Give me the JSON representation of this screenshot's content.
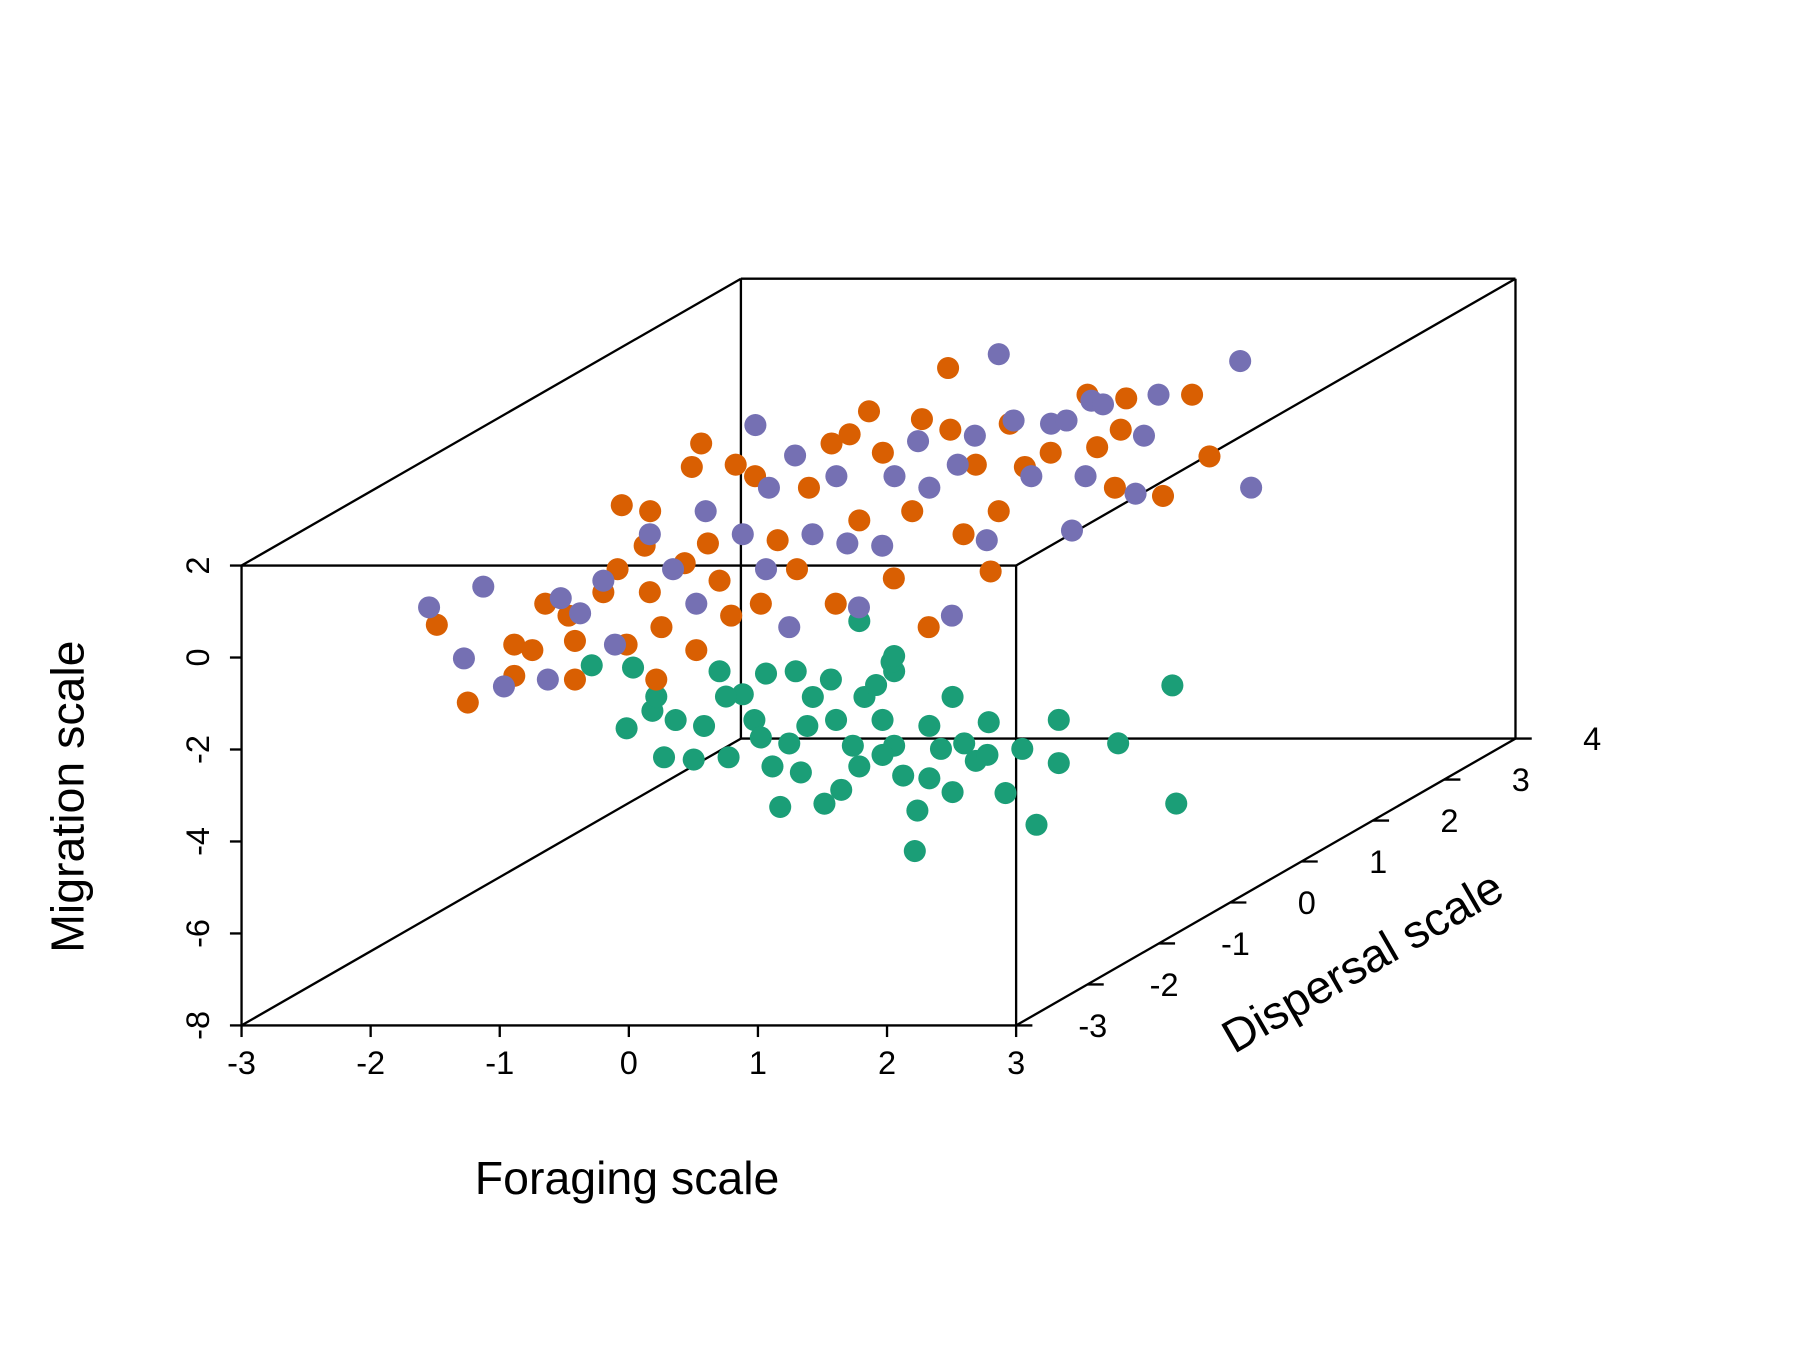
{
  "chart_data": {
    "type": "scatter3d",
    "xlabel": "Foraging scale",
    "ylabel": "Dispersal scale",
    "zlabel": "Migration scale",
    "xlim": [
      -3,
      3
    ],
    "ylim": [
      -3,
      4
    ],
    "zlim": [
      -8,
      2
    ],
    "xticks": [
      -3,
      -2,
      -1,
      0,
      1,
      2,
      3
    ],
    "yticks": [
      -3,
      -2,
      -1,
      0,
      1,
      2,
      3,
      4
    ],
    "zticks": [
      -8,
      -6,
      -4,
      -2,
      0,
      2
    ],
    "series": [
      {
        "color": "#1b9e77",
        "x": [
          2.0,
          2.03,
          1.58,
          1.12,
          1.12,
          1.5,
          1.26,
          1.13,
          1.03,
          0.94,
          0.85,
          1.11,
          1.13,
          0.67,
          1.02,
          0.95,
          0.86,
          0.95,
          0.72,
          0.68,
          0.54,
          0.41,
          0.78,
          0.69,
          0.62,
          0.56,
          0.42,
          0.33,
          0.22,
          0.15,
          0.03,
          -0.05,
          -0.19,
          -0.28,
          -0.37,
          -0.57,
          -0.34,
          -0.52,
          -0.84,
          0.32,
          0.5,
          0.63,
          0.86,
          0.67,
          0.85,
          0.51,
          0.93,
          0.74,
          0.76,
          1.12,
          1.39,
          0.46,
          0.81,
          0.83,
          0.47,
          0.2,
          0.68,
          0.95
        ],
        "y": [
          1,
          1,
          1,
          1,
          1,
          0,
          0,
          0,
          0,
          0,
          0,
          -1,
          -1,
          0,
          -1,
          -1,
          -1,
          -1,
          -1,
          -1,
          -1,
          -1,
          -2,
          -2,
          -2,
          -2,
          -2,
          -2,
          -2,
          -2,
          -2,
          -2,
          -2,
          -2,
          -2,
          -2,
          -2,
          -2,
          -2,
          -1,
          -1,
          -1,
          -1,
          0,
          0,
          -2,
          -1,
          -2,
          0,
          0,
          0,
          -1,
          -1,
          -2,
          -2,
          -2,
          -1,
          -1
        ],
        "z": [
          -4.17,
          -6.74,
          -5.43,
          -4.92,
          -5.86,
          -6.31,
          -5.62,
          -4.08,
          -4.92,
          -4.54,
          -5.6,
          -5.99,
          -5.11,
          -5.3,
          -4.35,
          -3.7,
          -3.14,
          -2.08,
          -2.64,
          -4.15,
          -4.66,
          -4.96,
          -3.39,
          -2.76,
          -4.14,
          -3.26,
          -2.25,
          -1.69,
          -3.06,
          -1.19,
          -2.38,
          -3.11,
          -2.25,
          -3.06,
          -2.05,
          -2.43,
          -1.74,
          -1.11,
          -1.06,
          -2.64,
          -3.14,
          -3.7,
          -3.9,
          -4.16,
          -3.53,
          -1.24,
          -1.88,
          -1.19,
          -4.66,
          -4.79,
          -4.66,
          -2.26,
          -2.38,
          -2.38,
          -2.63,
          -1.74,
          -0.99,
          -1.75
        ]
      },
      {
        "color": "#d95f02",
        "x": [
          -1.8,
          -2.04,
          -1.44,
          -1.44,
          -1.3,
          -1.2,
          -0.97,
          -0.97,
          -1.02,
          -0.75,
          -0.64,
          -0.57,
          -0.34,
          -0.3,
          -0.39,
          -0.43,
          -1.16,
          -0.94,
          -0.12,
          -1.17,
          -1.65,
          0.06,
          0.24,
          -0.83,
          -0.68,
          0.47,
          0.6,
          0.75,
          0.29,
          -0.64,
          -0.5,
          -0.35,
          0.68,
          0.31,
          1.5,
          1.09,
          0.06,
          1.77,
          0.28,
          -0.29,
          2.04,
          2.25,
          1.76,
          1.41,
          1.61,
          0.79,
          1.97,
          1.6,
          1.09,
          2.48,
          1.6,
          2.84,
          2.66,
          0.74,
          1.03,
          1.05,
          -0.03,
          0.15
        ],
        "y": [
          -2,
          -2,
          -2,
          -2,
          -2,
          -2,
          -2,
          -2,
          -2,
          -2,
          -2,
          -2,
          -2,
          -2,
          -2,
          -2,
          -1,
          -1,
          -2,
          0,
          1,
          -2,
          -2,
          0,
          0,
          -2,
          -2,
          -2,
          -1,
          1,
          1,
          1,
          -1,
          0,
          -2,
          -1,
          1,
          -2,
          1,
          2,
          -2,
          -2,
          -1,
          0,
          0,
          2,
          0,
          1,
          2,
          0,
          2,
          0,
          -1,
          1,
          0,
          -2,
          -2,
          -2
        ],
        "z": [
          -1.87,
          -0.18,
          -1.29,
          -0.61,
          -0.73,
          0.28,
          -1.37,
          -0.53,
          0.02,
          0.53,
          1.03,
          -0.61,
          -1.37,
          -0.23,
          0.53,
          1.54,
          1.53,
          1.4,
          1.16,
          1.47,
          1.09,
          1.59,
          0.02,
          1.52,
          1.27,
          0.28,
          1.66,
          1.03,
          1.91,
          1.09,
          1.29,
          1.79,
          1.2,
          1.78,
          0.83,
          1.4,
          1.62,
          -0.23,
          1.39,
          1.84,
          1.79,
          0.98,
          1.4,
          1.47,
          1.78,
          1.26,
          1.9,
          1.39,
          1.18,
          0.84,
          1.26,
          1.7,
          1.91,
          1.52,
          1.52,
          0.28,
          -0.73,
          0.78
        ]
      },
      {
        "color": "#7570b3",
        "x": [
          -2.1,
          -1.83,
          -1.68,
          -1.52,
          -1.18,
          -1.08,
          -0.93,
          -0.75,
          -0.66,
          -0.39,
          -0.21,
          -0.51,
          -1.23,
          -0.02,
          -0.37,
          -0.05,
          0.69,
          1.23,
          1.14,
          0.4,
          0.03,
          0.67,
          1.95,
          0.89,
          0.47,
          2.22,
          -0.45,
          0.77,
          1.46,
          1.06,
          1.18,
          2.88,
          1.88,
          0.82,
          0.91,
          2.82,
          1.78,
          1.34,
          1.42,
          2.61,
          1.41,
          0.87,
          0.33,
          -0.03,
          0.51
        ],
        "y": [
          -2,
          -2,
          -2,
          -2,
          -2,
          -2,
          -2,
          -2,
          -2,
          -2,
          -2,
          -1,
          1,
          -1,
          0,
          0,
          -2,
          -2,
          -2,
          0,
          1,
          0,
          -2,
          0,
          1,
          -2,
          3,
          1,
          0,
          1,
          1,
          -2,
          0,
          2,
          2,
          -1,
          1,
          2,
          3,
          1,
          -2,
          -2,
          -2,
          -2,
          -2
        ],
        "z": [
          0.2,
          -0.91,
          0.65,
          -1.52,
          -1.37,
          0.4,
          0.07,
          0.78,
          -0.61,
          1.79,
          1.03,
          1.4,
          1.49,
          1.91,
          1.72,
          1.27,
          -0.23,
          0.2,
          1.59,
          1.27,
          1.14,
          1.02,
          0.02,
          1.52,
          1.26,
          1.66,
          1.25,
          1.59,
          1.27,
          1.52,
          1.59,
          1.87,
          1.27,
          1.13,
          1.05,
          1.78,
          1.26,
          1.26,
          1.1,
          0.13,
          1.54,
          1.79,
          1.79,
          0.28,
          1.03
        ]
      }
    ]
  }
}
